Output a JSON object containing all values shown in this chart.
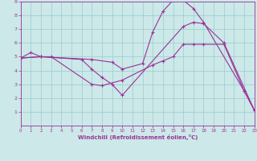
{
  "xlabel": "Windchill (Refroidissement éolien,°C)",
  "background_color": "#cce8e8",
  "line_color": "#993399",
  "grid_color": "#99cccc",
  "xlim": [
    0,
    23
  ],
  "ylim": [
    0,
    9
  ],
  "xticks": [
    0,
    1,
    2,
    3,
    4,
    5,
    6,
    7,
    8,
    9,
    10,
    11,
    12,
    13,
    14,
    15,
    16,
    17,
    18,
    19,
    20,
    21,
    22,
    23
  ],
  "yticks": [
    1,
    2,
    3,
    4,
    5,
    6,
    7,
    8,
    9
  ],
  "lines": [
    {
      "x": [
        0,
        1,
        2,
        7,
        9,
        10,
        12,
        13,
        14,
        15,
        16,
        17,
        18,
        22,
        23
      ],
      "y": [
        4.9,
        5.3,
        5.0,
        4.8,
        4.6,
        4.1,
        4.5,
        6.8,
        8.3,
        9.1,
        9.1,
        8.5,
        7.5,
        2.5,
        1.1
      ]
    },
    {
      "x": [
        0,
        2,
        3,
        7,
        8,
        10,
        13,
        14,
        15,
        16,
        17,
        18,
        20,
        22,
        23
      ],
      "y": [
        4.9,
        5.0,
        5.0,
        3.0,
        2.9,
        3.3,
        4.4,
        4.7,
        5.0,
        5.9,
        5.9,
        5.9,
        5.9,
        2.5,
        1.1
      ]
    },
    {
      "x": [
        0,
        2,
        6,
        7,
        8,
        9,
        10,
        16,
        17,
        18,
        20,
        23
      ],
      "y": [
        4.9,
        5.0,
        4.8,
        4.1,
        3.5,
        3.0,
        2.2,
        7.2,
        7.5,
        7.4,
        6.0,
        1.1
      ]
    }
  ]
}
